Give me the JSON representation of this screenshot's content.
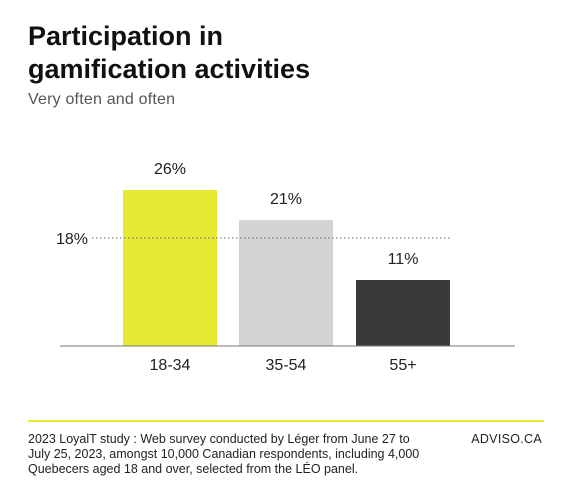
{
  "header": {
    "title_line1": "Participation in",
    "title_line2": "gamification activities",
    "subtitle": "Very often and often"
  },
  "chart_data": {
    "type": "bar",
    "categories": [
      "18-34",
      "35-54",
      "55+"
    ],
    "values": [
      26,
      21,
      11
    ],
    "value_labels": [
      "26%",
      "21%",
      "11%"
    ],
    "colors": [
      "#e6ea33",
      "#d4d4d4",
      "#3a3a3a"
    ],
    "reference_line": {
      "value": 18,
      "label": "18%"
    },
    "title": "Participation in gamification activities",
    "subtitle": "Very often and often",
    "ylim": [
      0,
      30
    ],
    "grid": false,
    "legend": "none"
  },
  "footer": {
    "source": "2023 LoyalT study : Web survey conducted by Léger from June 27 to July 25, 2023, amongst 10,000 Canadian respondents, including 4,000 Quebecers aged 18 and over, selected from the LÉO panel.",
    "brand": "ADVISO.CA",
    "accent_color": "#e6ea33"
  }
}
